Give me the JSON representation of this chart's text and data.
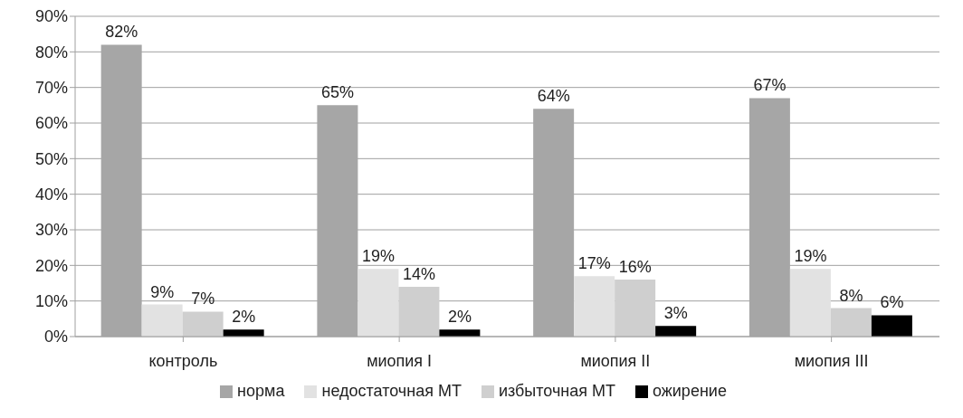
{
  "chart_data": {
    "type": "bar",
    "categories": [
      "контроль",
      "миопия I",
      "миопия II",
      "миопия III"
    ],
    "series": [
      {
        "name": "норма",
        "color": "#a6a6a6",
        "values": [
          82,
          65,
          64,
          67
        ],
        "value_labels": [
          "82%",
          "65%",
          "64%",
          "67%"
        ]
      },
      {
        "name": "недостаточная МТ",
        "color": "#e2e2e2",
        "values": [
          9,
          19,
          17,
          19
        ],
        "value_labels": [
          "9%",
          "19%",
          "17%",
          "19%"
        ]
      },
      {
        "name": "избыточная МТ",
        "color": "#cfcfcf",
        "values": [
          7,
          14,
          16,
          8
        ],
        "value_labels": [
          "7%",
          "14%",
          "16%",
          "8%"
        ]
      },
      {
        "name": "ожирение",
        "color": "#000000",
        "values": [
          2,
          2,
          3,
          6
        ],
        "value_labels": [
          "2%",
          "2%",
          "3%",
          "6%"
        ]
      }
    ],
    "ylim": [
      0,
      90
    ],
    "yticks": [
      {
        "value": 0,
        "label": "0%"
      },
      {
        "value": 10,
        "label": "10%"
      },
      {
        "value": 20,
        "label": "20%"
      },
      {
        "value": 30,
        "label": "30%"
      },
      {
        "value": 40,
        "label": "40%"
      },
      {
        "value": 50,
        "label": "50%"
      },
      {
        "value": 60,
        "label": "60%"
      },
      {
        "value": 70,
        "label": "70%"
      },
      {
        "value": 80,
        "label": "80%"
      },
      {
        "value": 90,
        "label": "90%"
      }
    ],
    "grid": "y",
    "legend": "bottom"
  }
}
